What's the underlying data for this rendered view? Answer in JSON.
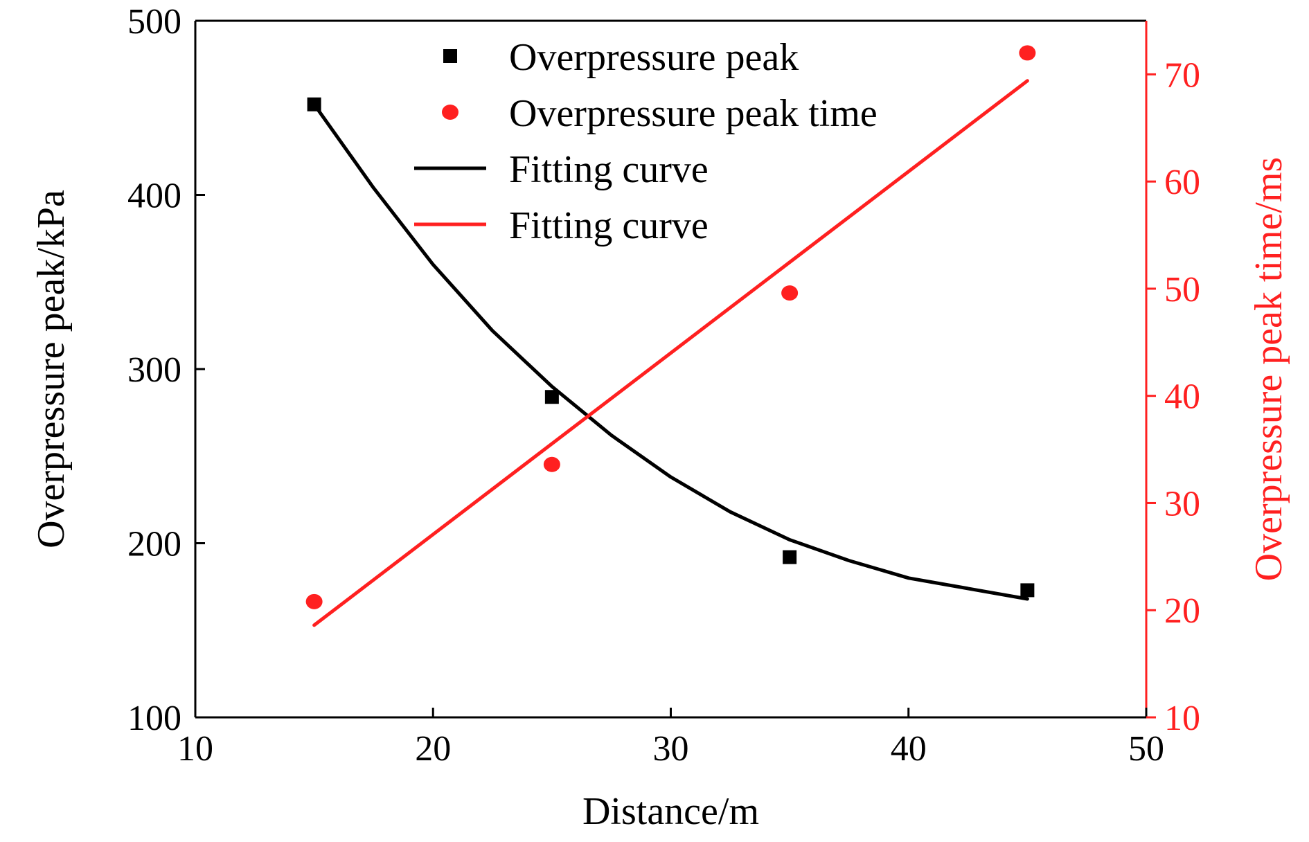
{
  "chart_data": {
    "type": "scatter",
    "xlabel": "Distance/m",
    "ylabel_left": "Overpressure peak/kPa",
    "ylabel_right": "Overpressure peak time/ms",
    "xlim": [
      10,
      50
    ],
    "ylim_left": [
      100,
      500
    ],
    "ylim_right": [
      10,
      75
    ],
    "x_ticks": [
      10,
      20,
      30,
      40,
      50
    ],
    "y_left_ticks": [
      100,
      200,
      300,
      400,
      500
    ],
    "y_right_ticks": [
      10,
      20,
      30,
      40,
      50,
      60,
      70
    ],
    "grid": false,
    "legend_position": "top-center",
    "colors": {
      "left_axis": "#000000",
      "right_axis": "#ff2020"
    },
    "series": [
      {
        "name": "Overpressure peak",
        "kind": "points",
        "marker": "square",
        "axis": "left",
        "color": "#000000",
        "x": [
          15,
          25,
          35,
          45
        ],
        "y": [
          452,
          284,
          192,
          173
        ]
      },
      {
        "name": "Overpressure peak time",
        "kind": "points",
        "marker": "circle",
        "axis": "right",
        "color": "#ff2020",
        "x": [
          15,
          25,
          35,
          45
        ],
        "y": [
          20.8,
          33.6,
          49.6,
          72.0
        ]
      },
      {
        "name": "Fitting curve",
        "kind": "line",
        "axis": "left",
        "color": "#000000",
        "x": [
          15,
          17.5,
          20,
          22.5,
          25,
          27.5,
          30,
          32.5,
          35,
          37.5,
          40,
          42.5,
          45
        ],
        "y": [
          452,
          404,
          360,
          322,
          290,
          262,
          238,
          218,
          202,
          190,
          180,
          174,
          168
        ]
      },
      {
        "name": "Fitting curve",
        "kind": "line",
        "axis": "right",
        "color": "#ff2020",
        "x": [
          15,
          45
        ],
        "y": [
          18.6,
          69.4
        ]
      }
    ]
  }
}
